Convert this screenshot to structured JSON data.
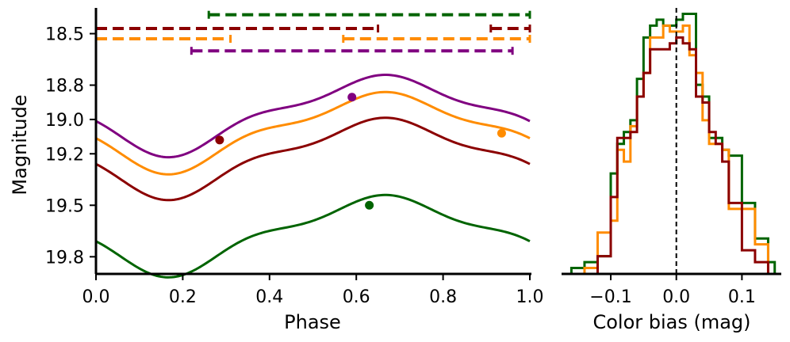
{
  "chart_data": [
    {
      "type": "line",
      "xlabel": "Phase",
      "ylabel": "Magnitude",
      "xlim": [
        0.0,
        1.0
      ],
      "ylim": [
        19.9,
        18.35
      ],
      "y_inverted": true,
      "xticks": [
        "0.0",
        "0.2",
        "0.4",
        "0.6",
        "0.8",
        "1.0"
      ],
      "yticks": [
        "18.5",
        "18.8",
        "19.0",
        "19.2",
        "19.5",
        "19.8"
      ],
      "curve_model": "offset + 0.2*cos(2*pi*(phase-0.167)) + 0.02*cos(4*pi*(phase-0.167)) + 0.04*cos(6*pi*(phase-0.167))",
      "series": [
        {
          "color": "#800080",
          "offset": 18.96,
          "marker": {
            "x": 0.59,
            "y": 18.87
          },
          "interval": {
            "ranges": [
              [
                0.22,
                0.96
              ]
            ],
            "y": 18.6
          }
        },
        {
          "color": "#ff8c00",
          "offset": 19.06,
          "marker": {
            "x": 0.935,
            "y": 19.08
          },
          "interval": {
            "ranges": [
              [
                0.0,
                0.31
              ],
              [
                0.57,
                1.0
              ]
            ],
            "y": 18.53
          }
        },
        {
          "color": "#8b0000",
          "offset": 19.21,
          "marker": {
            "x": 0.285,
            "y": 19.12
          },
          "interval": {
            "ranges": [
              [
                0.0,
                0.65
              ],
              [
                0.91,
                1.0
              ]
            ],
            "y": 18.47
          }
        },
        {
          "color": "#006400",
          "offset": 19.66,
          "marker": {
            "x": 0.63,
            "y": 19.5
          },
          "interval": {
            "ranges": [
              [
                0.26,
                1.0
              ]
            ],
            "y": 18.39
          }
        }
      ]
    },
    {
      "type": "histogram",
      "xlabel": "Color bias (mag)",
      "xlim": [
        -0.175,
        0.16
      ],
      "ylim": [
        0,
        45
      ],
      "xticks": [
        {
          "value": -0.1,
          "label": "−0.1"
        },
        {
          "value": 0.0,
          "label": "0.0"
        },
        {
          "value": 0.1,
          "label": "0.1"
        }
      ],
      "vline": {
        "x": 0.0,
        "style": "dashed",
        "color": "#000000"
      },
      "bin_edges": [
        -0.16,
        -0.14,
        -0.12,
        -0.1,
        -0.09,
        -0.08,
        -0.07,
        -0.06,
        -0.05,
        -0.04,
        -0.03,
        -0.02,
        -0.01,
        0.0,
        0.01,
        0.02,
        0.03,
        0.04,
        0.05,
        0.06,
        0.07,
        0.08,
        0.1,
        0.12,
        0.14,
        0.15
      ],
      "series": [
        {
          "color": "#006400",
          "counts": [
            1,
            2,
            3,
            17,
            22,
            24,
            26,
            33,
            40,
            42,
            43,
            42,
            42,
            43,
            44,
            44,
            32,
            30,
            23,
            23,
            21,
            20,
            12,
            6,
            2
          ]
        },
        {
          "color": "#ff8c00",
          "counts": [
            0,
            1,
            7,
            9,
            21,
            19,
            25,
            30,
            34,
            40,
            40,
            42,
            41,
            41,
            42,
            37,
            34,
            26,
            22,
            22,
            21,
            11,
            11,
            5,
            0
          ]
        },
        {
          "color": "#8b0000",
          "counts": [
            0,
            0,
            3,
            13,
            23,
            23,
            24,
            30,
            34,
            38,
            38,
            38,
            39,
            40,
            39,
            38,
            30,
            29,
            24,
            22,
            19,
            12,
            4,
            2,
            0
          ]
        }
      ]
    }
  ]
}
